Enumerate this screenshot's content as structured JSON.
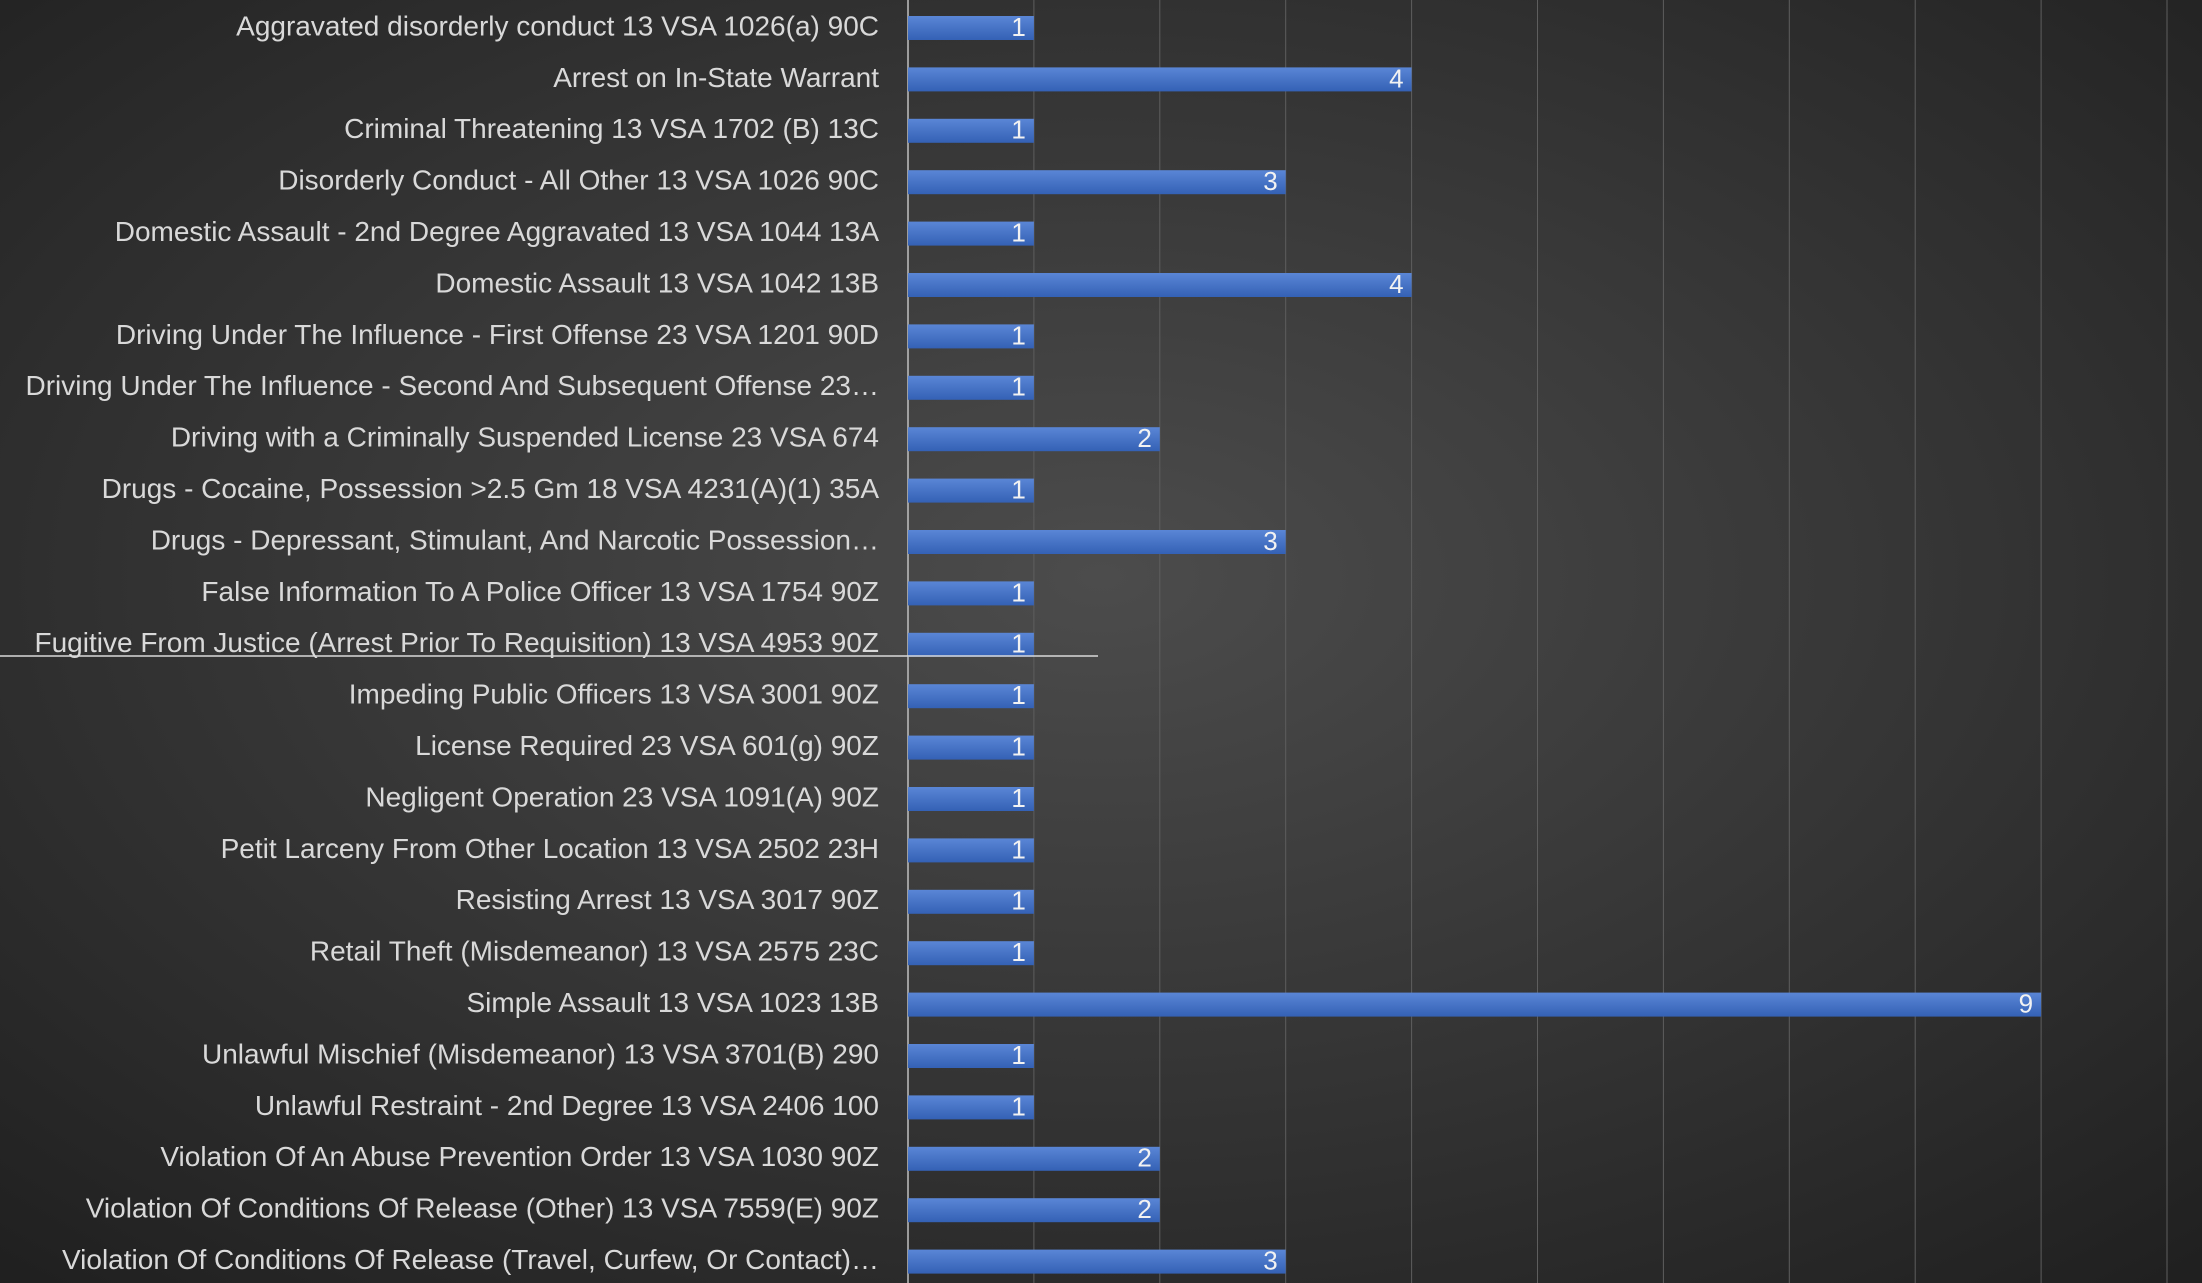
{
  "chart_data": {
    "type": "bar",
    "orientation": "horizontal",
    "categories": [
      "Aggravated disorderly conduct 13 VSA 1026(a) 90C",
      "Arrest on In-State Warrant",
      "Criminal Threatening 13 VSA 1702 (B) 13C",
      "Disorderly Conduct - All Other 13 VSA 1026 90C",
      "Domestic Assault - 2nd Degree Aggravated 13 VSA 1044 13A",
      "Domestic Assault 13 VSA 1042 13B",
      "Driving Under The Influence - First Offense 23 VSA 1201 90D",
      "Driving Under The Influence - Second And Subsequent Offense 23…",
      "Driving with a Criminally Suspended License 23 VSA 674",
      "Drugs - Cocaine, Possession  >2.5 Gm 18 VSA 4231(A)(1) 35A",
      "Drugs - Depressant, Stimulant, And Narcotic Possession…",
      "False Information To A Police Officer 13 VSA 1754 90Z",
      "Fugitive From Justice (Arrest Prior To Requisition) 13 VSA 4953 90Z",
      "Impeding Public Officers 13 VSA 3001 90Z",
      "License Required 23 VSA 601(g) 90Z",
      "Negligent Operation 23 VSA 1091(A) 90Z",
      "Petit Larceny From Other Location 13 VSA 2502 23H",
      "Resisting Arrest 13 VSA 3017 90Z",
      "Retail Theft (Misdemeanor) 13 VSA 2575 23C",
      "Simple Assault 13 VSA 1023 13B",
      "Unlawful Mischief (Misdemeanor) 13 VSA 3701(B) 290",
      "Unlawful Restraint - 2nd Degree 13 VSA 2406 100",
      "Violation Of An Abuse Prevention Order 13 VSA 1030 90Z",
      "Violation Of Conditions Of Release (Other) 13 VSA 7559(E) 90Z",
      "Violation Of Conditions Of Release (Travel, Curfew, Or Contact)…"
    ],
    "values": [
      1,
      4,
      1,
      3,
      1,
      4,
      1,
      1,
      2,
      1,
      3,
      1,
      1,
      1,
      1,
      1,
      1,
      1,
      1,
      9,
      1,
      1,
      2,
      2,
      3
    ],
    "color": "#4472c4",
    "xlim": [
      0,
      10
    ],
    "xticks": [
      0,
      1,
      2,
      3,
      4,
      5,
      6,
      7,
      8,
      9,
      10
    ],
    "grid": true
  }
}
